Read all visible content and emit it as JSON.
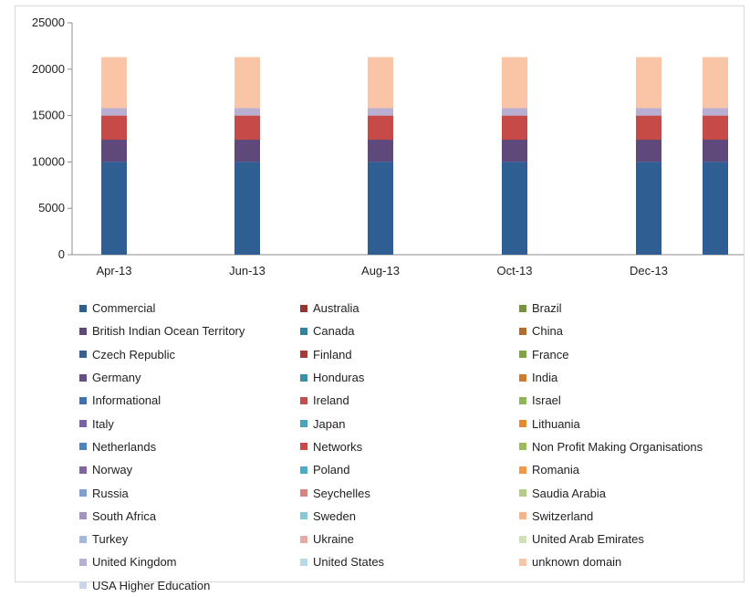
{
  "chart_data": {
    "type": "bar",
    "stacked": true,
    "categories": [
      "Apr-13",
      "Jun-13",
      "Aug-13",
      "Oct-13",
      "Dec-13",
      ""
    ],
    "y_ticks": [
      "25000",
      "20000",
      "15000",
      "10000",
      "5000",
      "0"
    ],
    "ylim": [
      0,
      25000
    ],
    "xlabel": "",
    "ylabel": "",
    "title": "",
    "legend_position": "bottom",
    "grid": false,
    "series": [
      {
        "name": "Commercial",
        "values": [
          10000,
          10000,
          10000,
          10000,
          10000,
          10000
        ]
      },
      {
        "name": "British Indian Ocean Territory",
        "values": [
          2400,
          2400,
          2400,
          2400,
          2400,
          2400
        ]
      },
      {
        "name": "Networks",
        "values": [
          2600,
          2600,
          2600,
          2600,
          2600,
          2600
        ]
      },
      {
        "name": "United Kingdom",
        "values": [
          800,
          800,
          800,
          800,
          800,
          800
        ]
      },
      {
        "name": "unknown domain",
        "values": [
          5500,
          5500,
          5500,
          5500,
          5500,
          5500
        ]
      }
    ],
    "legend": [
      {
        "label": "Commercial",
        "color": "#2f5e93"
      },
      {
        "label": "Australia",
        "color": "#953432"
      },
      {
        "label": "Brazil",
        "color": "#76923c"
      },
      {
        "label": "British Indian Ocean Territory",
        "color": "#5f497a"
      },
      {
        "label": "Canada",
        "color": "#31849b"
      },
      {
        "label": "China",
        "color": "#b46c2c"
      },
      {
        "label": "Czech Republic",
        "color": "#366092"
      },
      {
        "label": "Finland",
        "color": "#a33b39"
      },
      {
        "label": "France",
        "color": "#7fa346"
      },
      {
        "label": "Germany",
        "color": "#664f84"
      },
      {
        "label": "Honduras",
        "color": "#3b8ea3"
      },
      {
        "label": "India",
        "color": "#d07c2c"
      },
      {
        "label": "Informational",
        "color": "#4172ad"
      },
      {
        "label": "Ireland",
        "color": "#c0504d"
      },
      {
        "label": "Israel",
        "color": "#8fb556"
      },
      {
        "label": "Italy",
        "color": "#7b62a1"
      },
      {
        "label": "Japan",
        "color": "#4aa2bd"
      },
      {
        "label": "Lithuania",
        "color": "#e8882f"
      },
      {
        "label": "Netherlands",
        "color": "#4f81bd"
      },
      {
        "label": "Networks",
        "color": "#c64b48"
      },
      {
        "label": "Non Profit Making Organisations",
        "color": "#9bbb59"
      },
      {
        "label": "Norway",
        "color": "#8064a2"
      },
      {
        "label": "Poland",
        "color": "#4bacc6"
      },
      {
        "label": "Romania",
        "color": "#f79646"
      },
      {
        "label": "Russia",
        "color": "#7f9fcf"
      },
      {
        "label": "Seychelles",
        "color": "#d48582"
      },
      {
        "label": "Saudia Arabia",
        "color": "#b3cc8c"
      },
      {
        "label": "South Africa",
        "color": "#a494c2"
      },
      {
        "label": "Sweden",
        "color": "#8ac7d8"
      },
      {
        "label": "Switzerland",
        "color": "#f9b38a"
      },
      {
        "label": "Turkey",
        "color": "#a5b9dd"
      },
      {
        "label": "Ukraine",
        "color": "#e4aaa8"
      },
      {
        "label": "United Arab Emirates",
        "color": "#cfe0b7"
      },
      {
        "label": "United Kingdom",
        "color": "#b9afd2"
      },
      {
        "label": "United States",
        "color": "#b6dbe7"
      },
      {
        "label": "unknown domain",
        "color": "#fac5a6"
      },
      {
        "label": "USA Higher Education",
        "color": "#c9d5ea"
      }
    ]
  }
}
